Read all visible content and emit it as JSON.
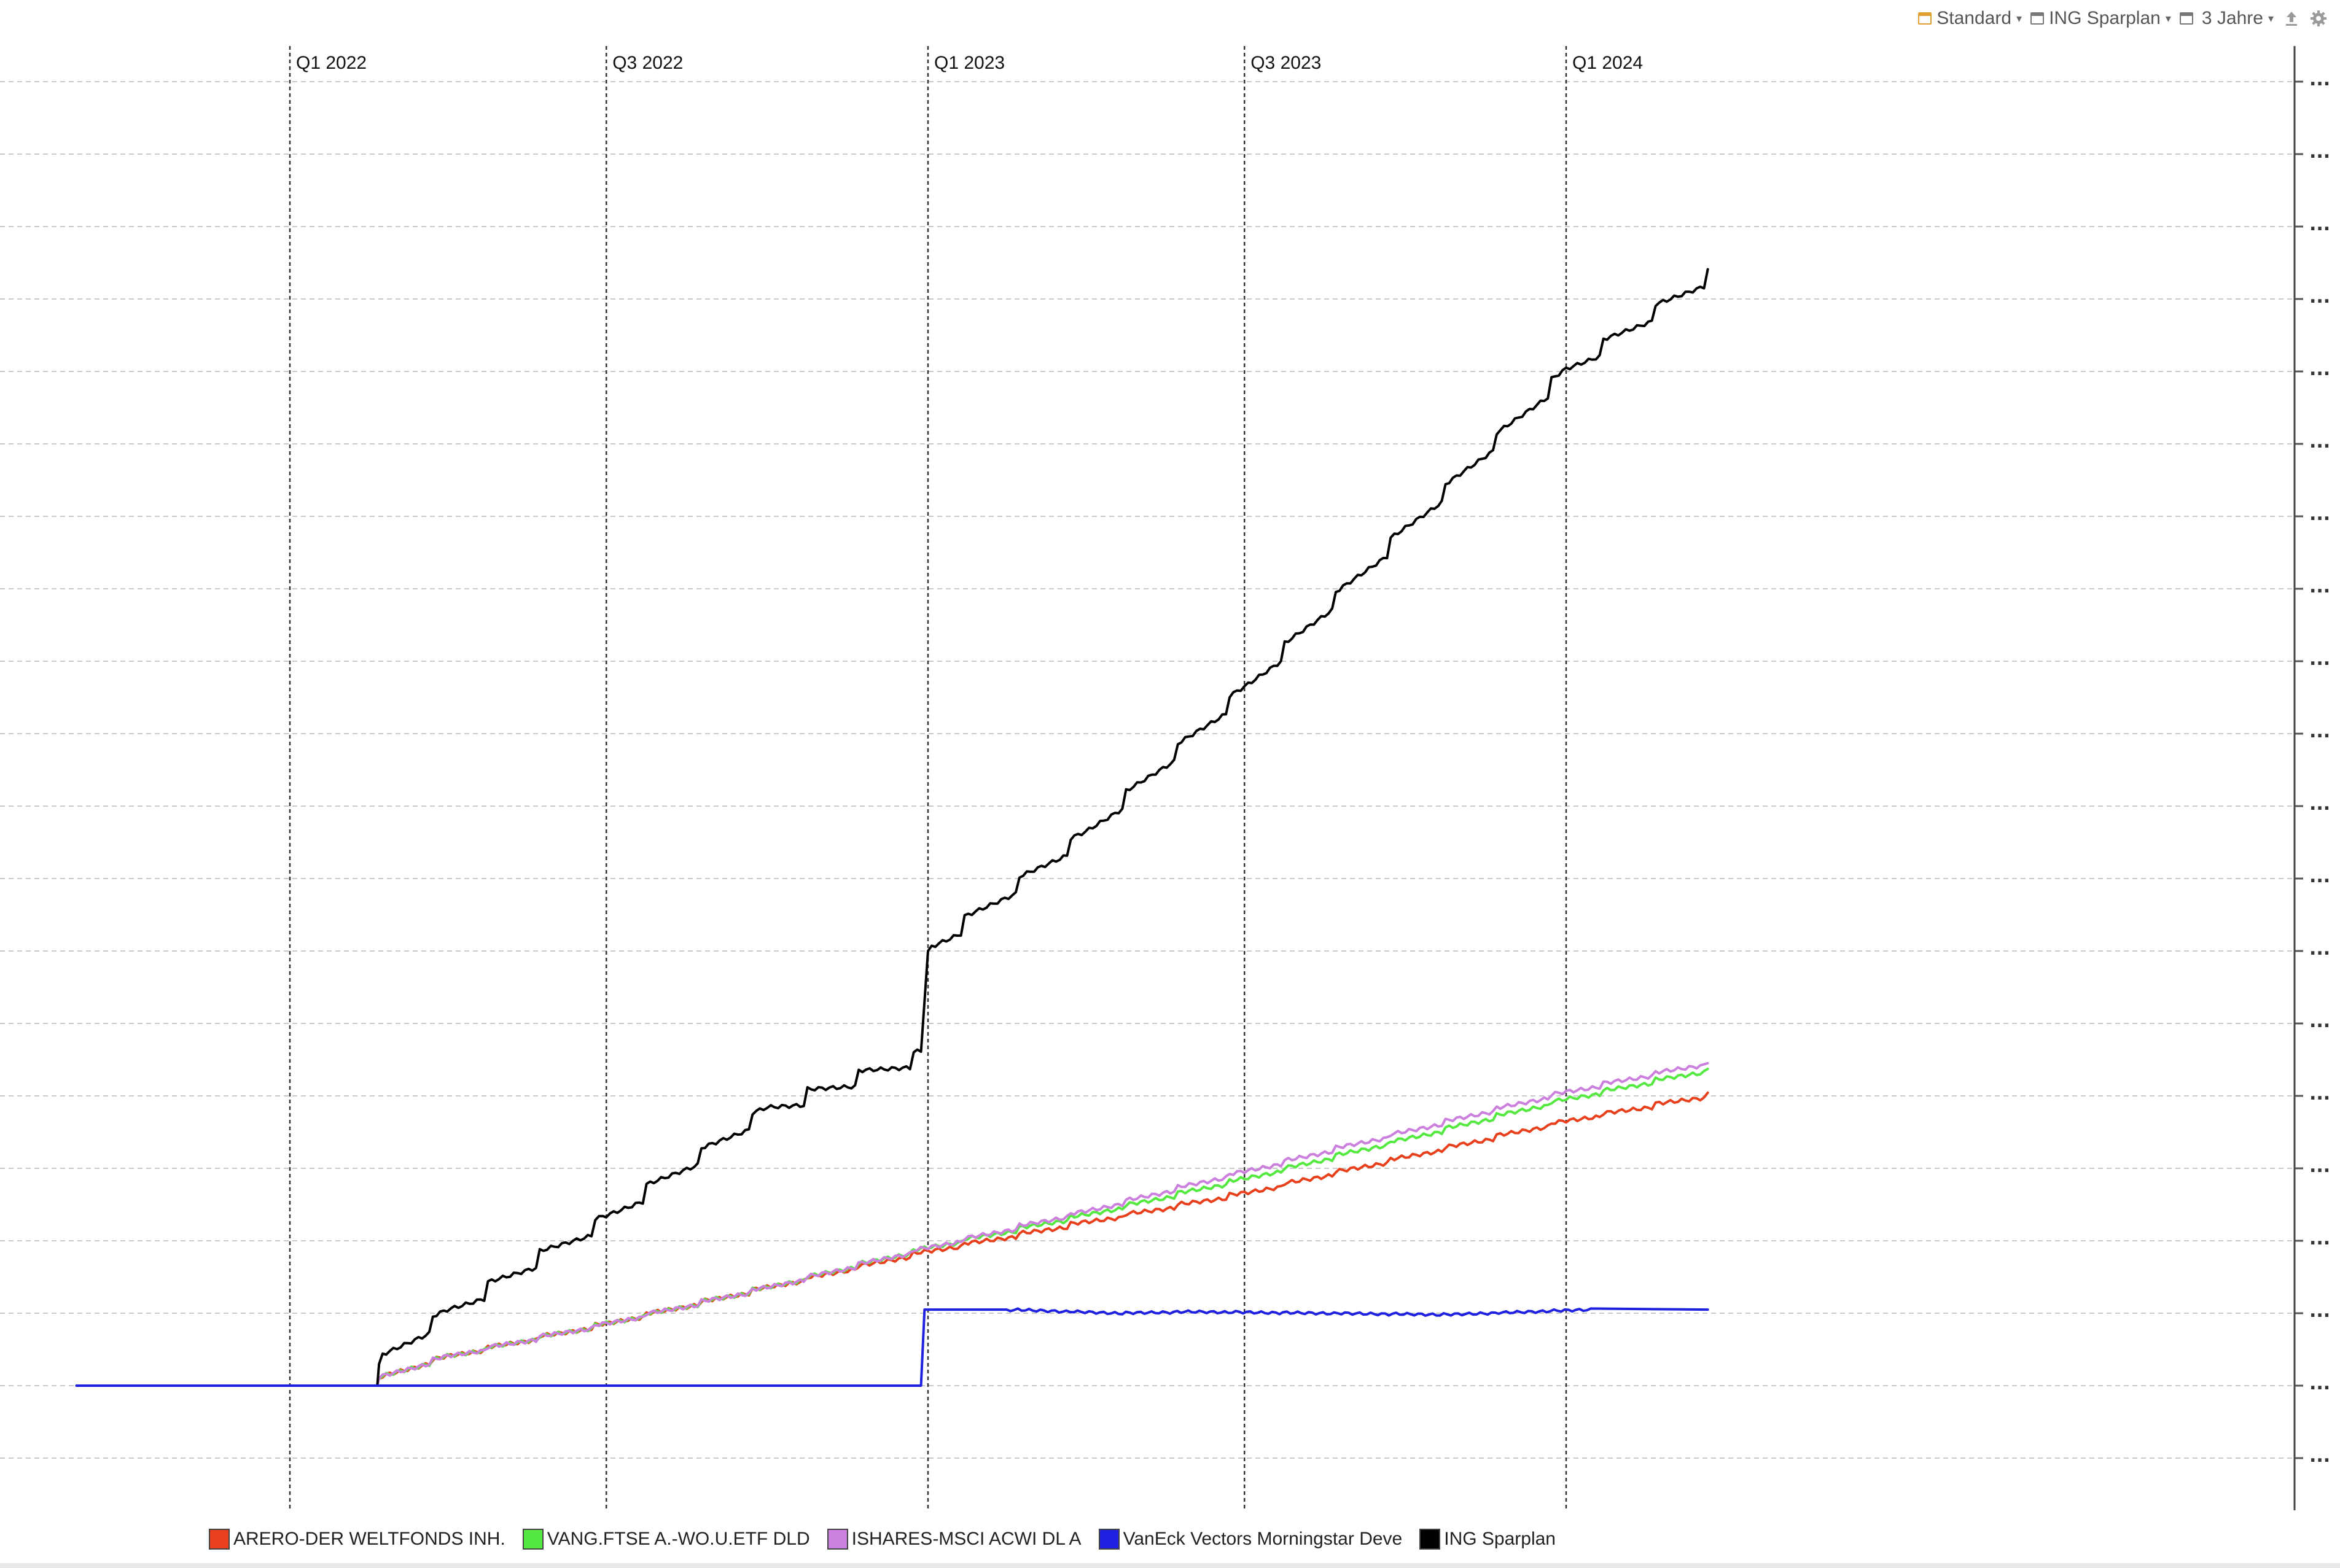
{
  "toolbar": {
    "layout_label": "Standard",
    "portfolio_label": "ING Sparplan",
    "period_label": "3 Jahre",
    "icons": [
      "calendar-icon",
      "calendar-icon",
      "calendar-icon",
      "upload-icon",
      "gear-icon"
    ],
    "accent_color": "#e0a030"
  },
  "chart_data": {
    "type": "line",
    "x_axis": {
      "type": "date",
      "range": [
        "2021-09-01",
        "2024-03-31"
      ],
      "ticks": [
        {
          "date": "2022-01-01",
          "label": "Q1 2022"
        },
        {
          "date": "2022-07-01",
          "label": "Q3 2022"
        },
        {
          "date": "2023-01-01",
          "label": "Q1 2023"
        },
        {
          "date": "2023-07-01",
          "label": "Q3 2023"
        },
        {
          "date": "2024-01-01",
          "label": "Q1 2024"
        }
      ]
    },
    "y_axis": {
      "ylim": [
        0,
        19
      ],
      "tick_count": 20,
      "tick_label": "...",
      "position": "right"
    },
    "grid": true,
    "legend_position": "bottom",
    "series": [
      {
        "name": "ARERO-DER WELTFONDS INH.",
        "color": "#e8401c",
        "x": [
          "2021-09-01",
          "2022-02-20",
          "2022-02-21",
          "2022-04-01",
          "2022-07-01",
          "2022-10-01",
          "2023-01-01",
          "2023-04-01",
          "2023-07-01",
          "2023-10-01",
          "2024-01-01",
          "2024-03-22"
        ],
        "y": [
          1.0,
          1.0,
          1.1,
          1.4,
          1.85,
          2.35,
          2.85,
          3.25,
          3.65,
          4.15,
          4.65,
          5.0
        ]
      },
      {
        "name": "VANG.FTSE A.-WO.U.ETF DLD",
        "color": "#55e840",
        "x": [
          "2021-09-01",
          "2022-02-20",
          "2022-02-21",
          "2022-04-01",
          "2022-07-01",
          "2022-10-01",
          "2023-01-01",
          "2023-04-01",
          "2023-07-01",
          "2023-10-01",
          "2024-01-01",
          "2024-03-22"
        ],
        "y": [
          1.0,
          1.0,
          1.1,
          1.4,
          1.85,
          2.35,
          2.9,
          3.35,
          3.85,
          4.4,
          4.95,
          5.35
        ]
      },
      {
        "name": "ISHARES-MSCI ACWI DL A",
        "color": "#cc80dd",
        "x": [
          "2021-09-01",
          "2022-02-20",
          "2022-02-21",
          "2022-04-01",
          "2022-07-01",
          "2022-10-01",
          "2023-01-01",
          "2023-04-01",
          "2023-07-01",
          "2023-10-01",
          "2024-01-01",
          "2024-03-22"
        ],
        "y": [
          1.0,
          1.0,
          1.1,
          1.4,
          1.85,
          2.35,
          2.9,
          3.4,
          3.95,
          4.5,
          5.05,
          5.45
        ]
      },
      {
        "name": "VanEck Vectors Morningstar Deve",
        "color": "#2020e0",
        "x": [
          "2021-09-01",
          "2022-12-28",
          "2022-12-30",
          "2023-02-15",
          "2023-04-20",
          "2023-06-01",
          "2023-08-15",
          "2023-10-25",
          "2024-01-15",
          "2024-03-22"
        ],
        "y": [
          1.0,
          1.0,
          2.05,
          2.05,
          2.0,
          2.02,
          2.0,
          1.98,
          2.05,
          2.05
        ]
      },
      {
        "name": "ING Sparplan",
        "color": "#000000",
        "x": [
          "2021-09-01",
          "2022-02-20",
          "2022-02-21",
          "2022-04-01",
          "2022-07-01",
          "2022-10-01",
          "2022-12-28",
          "2023-01-01",
          "2023-04-01",
          "2023-07-01",
          "2023-10-01",
          "2024-01-01",
          "2024-03-22"
        ],
        "y": [
          1.0,
          1.0,
          1.3,
          2.0,
          3.3,
          4.8,
          5.55,
          7.0,
          8.6,
          10.6,
          12.8,
          15.0,
          16.3
        ]
      }
    ]
  }
}
